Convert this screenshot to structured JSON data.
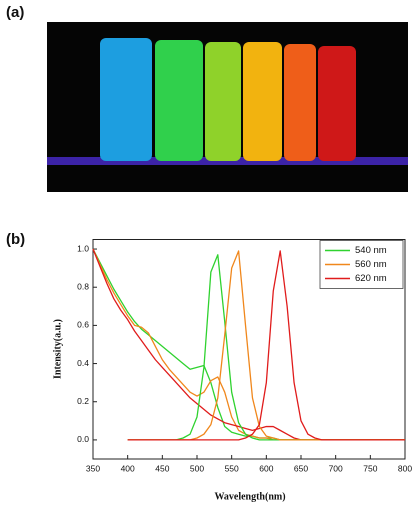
{
  "figure": {
    "label_a": "(a)",
    "label_b": "(b)"
  },
  "chart_data": {
    "type": "line",
    "x_label": "Wavelength(nm)",
    "y_label": "Intensity(a.u.)",
    "x": [
      350,
      360,
      370,
      380,
      390,
      400,
      410,
      420,
      430,
      440,
      450,
      460,
      470,
      480,
      490,
      500,
      510,
      520,
      530,
      540,
      550,
      560,
      570,
      580,
      590,
      600,
      610,
      620,
      630,
      640,
      650,
      660,
      670,
      680,
      690,
      700,
      710,
      720,
      730,
      740,
      750,
      760,
      770,
      780,
      790,
      800
    ],
    "series": [
      {
        "name": "540 nm",
        "color": "#2fd22f",
        "values": [
          1.0,
          0.93,
          0.86,
          0.79,
          0.73,
          0.67,
          0.62,
          0.58,
          0.55,
          0.52,
          0.49,
          0.46,
          0.43,
          0.4,
          0.37,
          0.38,
          0.39,
          0.3,
          0.17,
          0.07,
          0.04,
          0.03,
          0.02,
          0.02,
          0.01,
          0.01,
          0.01,
          0,
          0,
          0,
          0,
          0,
          0,
          0,
          0,
          0,
          0,
          0,
          0,
          0,
          0,
          0,
          0,
          0,
          0,
          0
        ]
      },
      {
        "name": "560 nm",
        "color": "#f0871c",
        "values": [
          1.0,
          0.92,
          0.84,
          0.77,
          0.71,
          0.65,
          0.6,
          0.59,
          0.56,
          0.49,
          0.42,
          0.37,
          0.33,
          0.29,
          0.25,
          0.23,
          0.25,
          0.31,
          0.33,
          0.25,
          0.12,
          0.05,
          0.03,
          0.02,
          0.01,
          0.01,
          0,
          0,
          0,
          0,
          0,
          0,
          0,
          0,
          0,
          0,
          0,
          0,
          0,
          0,
          0,
          0,
          0,
          0,
          0,
          0
        ]
      },
      {
        "name": "620 nm",
        "color": "#e01c1c",
        "values": [
          1.0,
          0.91,
          0.82,
          0.74,
          0.68,
          0.63,
          0.57,
          0.52,
          0.47,
          0.42,
          0.38,
          0.34,
          0.3,
          0.26,
          0.22,
          0.19,
          0.16,
          0.13,
          0.11,
          0.09,
          0.08,
          0.07,
          0.06,
          0.05,
          0.06,
          0.07,
          0.07,
          0.05,
          0.03,
          0.01,
          0,
          0,
          0,
          0,
          0,
          0,
          0,
          0,
          0,
          0,
          0,
          0,
          0,
          0,
          0,
          0
        ]
      },
      {
        "color": "#2fd22f",
        "values": [
          null,
          null,
          null,
          null,
          null,
          0,
          0,
          0,
          0,
          0,
          0,
          0,
          0,
          0.01,
          0.03,
          0.12,
          0.38,
          0.88,
          0.97,
          0.62,
          0.25,
          0.09,
          0.03,
          0.01,
          0,
          0,
          0,
          0,
          0,
          0,
          0,
          0,
          0,
          0,
          0,
          0,
          0,
          0,
          0,
          0,
          0,
          0,
          0,
          0,
          0,
          0
        ]
      },
      {
        "color": "#f0871c",
        "values": [
          null,
          null,
          null,
          null,
          null,
          0,
          0,
          0,
          0,
          0,
          0,
          0,
          0,
          0,
          0,
          0.01,
          0.03,
          0.08,
          0.22,
          0.55,
          0.9,
          0.99,
          0.6,
          0.22,
          0.07,
          0.02,
          0.01,
          0,
          0,
          0,
          0,
          0,
          0,
          0,
          0,
          0,
          0,
          0,
          0,
          0,
          0,
          0,
          0,
          0,
          0,
          0
        ]
      },
      {
        "color": "#e01c1c",
        "values": [
          null,
          null,
          null,
          null,
          null,
          0,
          0,
          0,
          0,
          0,
          0,
          0,
          0,
          0,
          0,
          0,
          0,
          0,
          0,
          0,
          0,
          0,
          0.01,
          0.03,
          0.08,
          0.3,
          0.78,
          0.99,
          0.7,
          0.3,
          0.1,
          0.03,
          0.01,
          0,
          0,
          0,
          0,
          0,
          0,
          0,
          0,
          0,
          0,
          0,
          0,
          0
        ]
      }
    ],
    "xlim": [
      350,
      800
    ],
    "xticks": [
      350,
      400,
      450,
      500,
      550,
      600,
      650,
      700,
      750,
      800
    ],
    "ylim": [
      -0.1,
      1.05
    ],
    "yticks": [
      {
        "value": 0,
        "label": "0.0"
      },
      0.2,
      0.4,
      0.6,
      0.8,
      {
        "value": 1,
        "label": "1.0"
      }
    ],
    "grid": false,
    "legend": "upper-right"
  }
}
